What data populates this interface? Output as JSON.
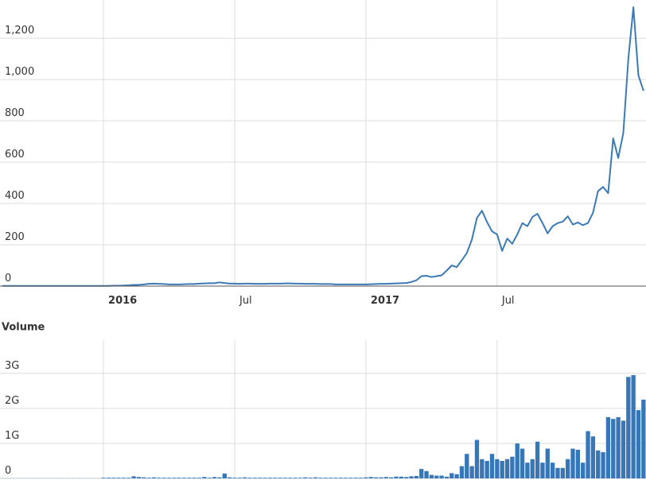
{
  "chart_data": [
    {
      "type": "line",
      "categories": [
        null,
        null,
        null,
        null,
        null,
        null,
        null,
        null,
        null,
        null,
        null,
        null,
        null,
        null,
        null,
        null,
        null,
        null,
        null,
        null,
        "2016",
        null,
        null,
        null,
        null,
        null,
        null,
        null,
        null,
        null,
        null,
        null,
        null,
        null,
        null,
        null,
        null,
        null,
        null,
        null,
        null,
        null,
        null,
        null,
        null,
        null,
        "Jul",
        null,
        null,
        null,
        null,
        null,
        null,
        null,
        null,
        null,
        null,
        null,
        null,
        null,
        null,
        null,
        null,
        null,
        null,
        null,
        null,
        null,
        null,
        null,
        null,
        null,
        "2017",
        null,
        null,
        null,
        null,
        null,
        null,
        null,
        null,
        null,
        null,
        null,
        null,
        null,
        null,
        null,
        null,
        null,
        null,
        null,
        null,
        null,
        null,
        null,
        null,
        null,
        "Jul",
        null,
        null,
        null,
        null,
        null,
        null,
        null,
        null,
        null,
        null,
        null,
        null,
        null,
        null,
        null,
        null,
        null,
        null,
        null,
        null,
        null,
        null,
        null,
        null,
        null,
        null,
        null,
        null,
        null
      ],
      "series": [
        {
          "color": "#3c7ab5",
          "values": [
            1,
            1,
            1,
            1,
            1,
            1,
            1,
            1,
            1,
            1,
            1,
            1,
            1,
            1,
            1,
            1,
            1,
            1,
            1,
            1,
            1,
            1,
            2,
            2,
            3,
            4,
            6,
            6,
            8,
            11,
            12,
            11,
            10,
            8,
            8,
            8,
            9,
            10,
            10,
            12,
            13,
            14,
            14,
            18,
            15,
            12,
            12,
            11,
            12,
            12,
            11,
            11,
            11,
            12,
            12,
            12,
            13,
            13,
            12,
            12,
            11,
            11,
            11,
            10,
            10,
            10,
            8,
            8,
            8,
            8,
            8,
            8,
            8,
            9,
            10,
            11,
            11,
            12,
            13,
            14,
            15,
            20,
            28,
            48,
            50,
            44,
            48,
            52,
            75,
            100,
            92,
            125,
            160,
            225,
            330,
            365,
            310,
            265,
            250,
            170,
            230,
            205,
            250,
            305,
            290,
            335,
            350,
            305,
            255,
            290,
            305,
            312,
            338,
            298,
            308,
            295,
            305,
            355,
            460,
            480,
            450,
            715,
            620,
            740,
            1100,
            1350,
            1020,
            945
          ]
        }
      ],
      "ylim": [
        0,
        1385
      ],
      "yticks": [
        0,
        200,
        400,
        600,
        800,
        {
          "value": 1000,
          "label": "1,000"
        },
        {
          "value": 1200,
          "label": "1,200"
        }
      ],
      "grid": true
    },
    {
      "type": "bar",
      "title": "Volume",
      "color": "#3777b8",
      "values": [
        5000000.0,
        5000000.0,
        5000000.0,
        5000000.0,
        5000000.0,
        5000000.0,
        5000000.0,
        5000000.0,
        5000000.0,
        5000000.0,
        5000000.0,
        5000000.0,
        5000000.0,
        5000000.0,
        5000000.0,
        5000000.0,
        5000000.0,
        5000000.0,
        5000000.0,
        5000000.0,
        20000000.0,
        20000000.0,
        20000000.0,
        20000000.0,
        20000000.0,
        20000000.0,
        60000000.0,
        40000000.0,
        30000000.0,
        20000000.0,
        30000000.0,
        20000000.0,
        20000000.0,
        20000000.0,
        20000000.0,
        20000000.0,
        20000000.0,
        20000000.0,
        20000000.0,
        20000000.0,
        40000000.0,
        20000000.0,
        40000000.0,
        30000000.0,
        140000000.0,
        30000000.0,
        20000000.0,
        20000000.0,
        30000000.0,
        20000000.0,
        20000000.0,
        20000000.0,
        20000000.0,
        20000000.0,
        20000000.0,
        20000000.0,
        20000000.0,
        20000000.0,
        20000000.0,
        20000000.0,
        30000000.0,
        20000000.0,
        30000000.0,
        20000000.0,
        20000000.0,
        20000000.0,
        20000000.0,
        20000000.0,
        20000000.0,
        20000000.0,
        20000000.0,
        20000000.0,
        30000000.0,
        40000000.0,
        30000000.0,
        30000000.0,
        40000000.0,
        30000000.0,
        50000000.0,
        50000000.0,
        40000000.0,
        60000000.0,
        70000000.0,
        270000000.0,
        210000000.0,
        100000000.0,
        80000000.0,
        80000000.0,
        50000000.0,
        150000000.0,
        120000000.0,
        350000000.0,
        700000000.0,
        350000000.0,
        1100000000.0,
        550000000.0,
        500000000.0,
        700000000.0,
        550000000.0,
        500000000.0,
        550000000.0,
        620000000.0,
        1000000000.0,
        850000000.0,
        450000000.0,
        550000000.0,
        1050000000.0,
        450000000.0,
        850000000.0,
        450000000.0,
        300000000.0,
        300000000.0,
        550000000.0,
        850000000.0,
        820000000.0,
        450000000.0,
        1350000000.0,
        1200000000.0,
        800000000.0,
        750000000.0,
        1750000000.0,
        1700000000.0,
        1750000000.0,
        1650000000.0,
        2900000000.0,
        2950000000.0,
        1950000000.0,
        2250000000.0
      ],
      "ylim": [
        0,
        3950000000.0
      ],
      "yticks": [
        0,
        {
          "value": 1000000000.0,
          "label": "1G"
        },
        {
          "value": 2000000000.0,
          "label": "2G"
        },
        {
          "value": 3000000000.0,
          "label": "3G"
        }
      ],
      "grid": true
    }
  ]
}
